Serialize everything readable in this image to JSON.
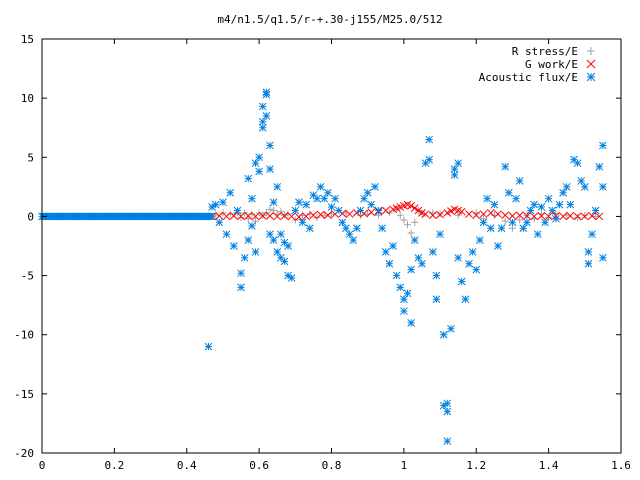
{
  "chart_data": {
    "type": "scatter",
    "title": "m4/n1.5/q1.5/r-+.30-j155/M25.0/512",
    "xlabel": "",
    "ylabel": "",
    "xlim": [
      0,
      1.6
    ],
    "ylim": [
      -20,
      15
    ],
    "x_ticks": [
      "0",
      "0.2",
      "0.4",
      "0.6",
      "0.8",
      "1",
      "1.2",
      "1.4",
      "1.6"
    ],
    "y_ticks": [
      "15",
      "10",
      "5",
      "0",
      "-5",
      "-10",
      "-15",
      "-20"
    ],
    "grid": false,
    "legend_position": "top-right",
    "series": [
      {
        "name": "R stress/E",
        "marker": "plus",
        "color": "#a0a0a0",
        "points": [
          [
            0.48,
            0.1
          ],
          [
            0.5,
            0.3
          ],
          [
            0.52,
            0.2
          ],
          [
            0.54,
            0.3
          ],
          [
            0.55,
            -0.1
          ],
          [
            0.56,
            0.3
          ],
          [
            0.57,
            -0.2
          ],
          [
            0.58,
            0.2
          ],
          [
            0.59,
            -0.4
          ],
          [
            0.6,
            0.3
          ],
          [
            0.61,
            0.1
          ],
          [
            0.62,
            0.3
          ],
          [
            0.63,
            0.6
          ],
          [
            0.64,
            0.5
          ],
          [
            0.65,
            0.2
          ],
          [
            0.66,
            0.4
          ],
          [
            0.67,
            0.1
          ],
          [
            0.68,
            0.2
          ],
          [
            0.7,
            -0.3
          ],
          [
            0.72,
            0.1
          ],
          [
            0.74,
            0.2
          ],
          [
            0.76,
            -0.1
          ],
          [
            0.78,
            0.1
          ],
          [
            0.8,
            0.2
          ],
          [
            0.84,
            0.3
          ],
          [
            0.88,
            0.1
          ],
          [
            0.9,
            0.2
          ],
          [
            0.93,
            0.1
          ],
          [
            0.96,
            0.3
          ],
          [
            0.98,
            0.6
          ],
          [
            0.99,
            0.1
          ],
          [
            1.0,
            -0.3
          ],
          [
            1.01,
            -0.7
          ],
          [
            1.02,
            -1.4
          ],
          [
            1.03,
            -0.5
          ],
          [
            1.04,
            0.5
          ],
          [
            1.05,
            0.2
          ],
          [
            1.08,
            0.3
          ],
          [
            1.1,
            0.2
          ],
          [
            1.15,
            0.1
          ],
          [
            1.2,
            0.3
          ],
          [
            1.22,
            -0.2
          ],
          [
            1.25,
            0.1
          ],
          [
            1.28,
            -0.4
          ],
          [
            1.3,
            -1.0
          ],
          [
            1.32,
            -0.3
          ],
          [
            1.34,
            0.1
          ],
          [
            1.36,
            -0.2
          ],
          [
            1.38,
            0.2
          ],
          [
            1.4,
            -0.1
          ],
          [
            1.42,
            0.2
          ],
          [
            1.45,
            0.1
          ],
          [
            1.48,
            -0.1
          ],
          [
            1.5,
            0.1
          ],
          [
            1.53,
            0.0
          ]
        ]
      },
      {
        "name": "G work/E",
        "marker": "cross",
        "color": "#ff0000",
        "points": [
          [
            0.47,
            0.0
          ],
          [
            0.49,
            0.05
          ],
          [
            0.51,
            0.0
          ],
          [
            0.53,
            0.05
          ],
          [
            0.55,
            0.0
          ],
          [
            0.57,
            0.05
          ],
          [
            0.59,
            0.0
          ],
          [
            0.61,
            0.05
          ],
          [
            0.63,
            0.05
          ],
          [
            0.65,
            0.0
          ],
          [
            0.67,
            0.05
          ],
          [
            0.69,
            0.0
          ],
          [
            0.71,
            -0.05
          ],
          [
            0.73,
            0.0
          ],
          [
            0.75,
            0.1
          ],
          [
            0.77,
            0.15
          ],
          [
            0.79,
            0.1
          ],
          [
            0.81,
            0.2
          ],
          [
            0.83,
            0.25
          ],
          [
            0.85,
            0.2
          ],
          [
            0.87,
            0.3
          ],
          [
            0.89,
            0.25
          ],
          [
            0.91,
            0.35
          ],
          [
            0.93,
            0.4
          ],
          [
            0.95,
            0.5
          ],
          [
            0.97,
            0.6
          ],
          [
            0.98,
            0.7
          ],
          [
            0.99,
            0.8
          ],
          [
            1.0,
            0.9
          ],
          [
            1.01,
            1.0
          ],
          [
            1.02,
            0.9
          ],
          [
            1.03,
            0.7
          ],
          [
            1.04,
            0.5
          ],
          [
            1.05,
            0.3
          ],
          [
            1.06,
            0.2
          ],
          [
            1.08,
            0.1
          ],
          [
            1.1,
            0.15
          ],
          [
            1.12,
            0.3
          ],
          [
            1.13,
            0.45
          ],
          [
            1.14,
            0.6
          ],
          [
            1.15,
            0.5
          ],
          [
            1.16,
            0.4
          ],
          [
            1.18,
            0.2
          ],
          [
            1.2,
            0.1
          ],
          [
            1.22,
            0.2
          ],
          [
            1.24,
            0.3
          ],
          [
            1.26,
            0.2
          ],
          [
            1.28,
            0.1
          ],
          [
            1.3,
            0.05
          ],
          [
            1.32,
            0.1
          ],
          [
            1.34,
            0.05
          ],
          [
            1.36,
            0.0
          ],
          [
            1.38,
            0.05
          ],
          [
            1.4,
            0.0
          ],
          [
            1.42,
            0.05
          ],
          [
            1.44,
            0.0
          ],
          [
            1.46,
            0.05
          ],
          [
            1.48,
            0.0
          ],
          [
            1.5,
            0.0
          ],
          [
            1.52,
            0.05
          ],
          [
            1.54,
            0.0
          ]
        ]
      },
      {
        "name": "Acoustic flux/E",
        "marker": "star",
        "color": "#0080e0",
        "points": [
          [
            0.46,
            -11.0
          ],
          [
            0.47,
            0.8
          ],
          [
            0.48,
            1.0
          ],
          [
            0.49,
            -0.5
          ],
          [
            0.5,
            1.2
          ],
          [
            0.51,
            -1.5
          ],
          [
            0.52,
            2.0
          ],
          [
            0.53,
            -2.5
          ],
          [
            0.54,
            0.5
          ],
          [
            0.55,
            -4.8
          ],
          [
            0.55,
            -6.0
          ],
          [
            0.56,
            -3.5
          ],
          [
            0.57,
            3.2
          ],
          [
            0.57,
            -2.0
          ],
          [
            0.58,
            1.5
          ],
          [
            0.58,
            -0.8
          ],
          [
            0.59,
            4.5
          ],
          [
            0.59,
            -3.0
          ],
          [
            0.6,
            3.8
          ],
          [
            0.6,
            5.0
          ],
          [
            0.61,
            7.5
          ],
          [
            0.61,
            8.0
          ],
          [
            0.61,
            9.3
          ],
          [
            0.62,
            10.3
          ],
          [
            0.62,
            10.5
          ],
          [
            0.62,
            8.5
          ],
          [
            0.63,
            6.0
          ],
          [
            0.63,
            4.0
          ],
          [
            0.63,
            -1.5
          ],
          [
            0.64,
            1.2
          ],
          [
            0.64,
            -2.0
          ],
          [
            0.65,
            2.5
          ],
          [
            0.65,
            -3.0
          ],
          [
            0.66,
            -1.5
          ],
          [
            0.66,
            -3.5
          ],
          [
            0.67,
            -3.8
          ],
          [
            0.67,
            -2.2
          ],
          [
            0.68,
            -5.0
          ],
          [
            0.68,
            -2.5
          ],
          [
            0.69,
            -5.2
          ],
          [
            0.7,
            0.5
          ],
          [
            0.71,
            1.2
          ],
          [
            0.72,
            -0.5
          ],
          [
            0.73,
            1.0
          ],
          [
            0.74,
            -1.0
          ],
          [
            0.75,
            1.8
          ],
          [
            0.76,
            1.5
          ],
          [
            0.77,
            2.5
          ],
          [
            0.78,
            1.5
          ],
          [
            0.79,
            2.0
          ],
          [
            0.8,
            0.8
          ],
          [
            0.81,
            1.5
          ],
          [
            0.82,
            0.5
          ],
          [
            0.83,
            -0.5
          ],
          [
            0.84,
            -1.0
          ],
          [
            0.85,
            -1.5
          ],
          [
            0.86,
            -2.0
          ],
          [
            0.87,
            -1.0
          ],
          [
            0.88,
            0.5
          ],
          [
            0.89,
            1.5
          ],
          [
            0.9,
            2.0
          ],
          [
            0.91,
            1.0
          ],
          [
            0.92,
            2.5
          ],
          [
            0.93,
            0.5
          ],
          [
            0.94,
            -1.0
          ],
          [
            0.95,
            -3.0
          ],
          [
            0.96,
            -4.0
          ],
          [
            0.97,
            -2.5
          ],
          [
            0.98,
            -5.0
          ],
          [
            0.99,
            -6.0
          ],
          [
            1.0,
            -7.0
          ],
          [
            1.0,
            -8.0
          ],
          [
            1.01,
            -6.5
          ],
          [
            1.02,
            -9.0
          ],
          [
            1.02,
            -4.5
          ],
          [
            1.03,
            -2.0
          ],
          [
            1.04,
            -3.5
          ],
          [
            1.05,
            -4.0
          ],
          [
            1.06,
            4.5
          ],
          [
            1.07,
            6.5
          ],
          [
            1.07,
            4.8
          ],
          [
            1.08,
            -3.0
          ],
          [
            1.09,
            -5.0
          ],
          [
            1.09,
            -7.0
          ],
          [
            1.1,
            -1.5
          ],
          [
            1.11,
            -10.0
          ],
          [
            1.11,
            -16.0
          ],
          [
            1.12,
            -16.5
          ],
          [
            1.12,
            -15.8
          ],
          [
            1.12,
            -19.0
          ],
          [
            1.13,
            -9.5
          ],
          [
            1.14,
            3.5
          ],
          [
            1.14,
            4.0
          ],
          [
            1.15,
            4.5
          ],
          [
            1.15,
            -3.5
          ],
          [
            1.16,
            -5.5
          ],
          [
            1.17,
            -7.0
          ],
          [
            1.18,
            -4.0
          ],
          [
            1.19,
            -3.0
          ],
          [
            1.2,
            -4.5
          ],
          [
            1.21,
            -2.0
          ],
          [
            1.22,
            -0.5
          ],
          [
            1.23,
            1.5
          ],
          [
            1.24,
            -1.0
          ],
          [
            1.25,
            1.0
          ],
          [
            1.26,
            -2.5
          ],
          [
            1.27,
            -1.0
          ],
          [
            1.28,
            4.2
          ],
          [
            1.29,
            2.0
          ],
          [
            1.3,
            -0.5
          ],
          [
            1.31,
            1.5
          ],
          [
            1.32,
            3.0
          ],
          [
            1.33,
            -1.0
          ],
          [
            1.34,
            -0.5
          ],
          [
            1.35,
            0.5
          ],
          [
            1.36,
            1.0
          ],
          [
            1.37,
            -1.5
          ],
          [
            1.38,
            0.8
          ],
          [
            1.39,
            -0.5
          ],
          [
            1.4,
            1.5
          ],
          [
            1.41,
            0.5
          ],
          [
            1.42,
            -0.2
          ],
          [
            1.43,
            1.0
          ],
          [
            1.44,
            2.0
          ],
          [
            1.45,
            2.5
          ],
          [
            1.46,
            1.0
          ],
          [
            1.47,
            4.8
          ],
          [
            1.48,
            4.5
          ],
          [
            1.49,
            3.0
          ],
          [
            1.5,
            2.5
          ],
          [
            1.51,
            -3.0
          ],
          [
            1.51,
            -4.0
          ],
          [
            1.52,
            -1.5
          ],
          [
            1.53,
            0.5
          ],
          [
            1.54,
            4.2
          ],
          [
            1.55,
            6.0
          ],
          [
            1.55,
            -3.5
          ],
          [
            1.55,
            2.5
          ]
        ],
        "flat_segment": {
          "x_start": 0,
          "x_end": 0.47,
          "y": 0
        }
      }
    ]
  }
}
